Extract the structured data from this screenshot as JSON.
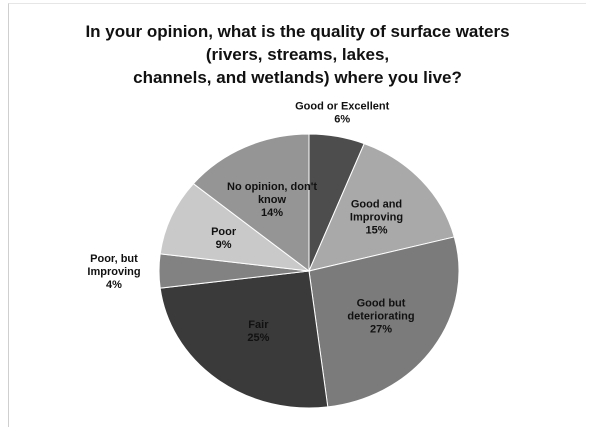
{
  "title_lines": [
    "In your opinion, what is the quality of surface waters",
    "(rivers, streams, lakes,",
    "channels, and wetlands) where you live?"
  ],
  "chart_data": {
    "type": "pie",
    "title": "In your opinion, what is the quality of surface waters (rivers, streams, lakes, channels, and wetlands) where you live?",
    "unit": "%",
    "start_angle_deg": 0,
    "direction": "clockwise",
    "slices": [
      {
        "label": "Good or Excellent",
        "label_lines": [
          "Good or Excellent"
        ],
        "value": 6,
        "value_label": "6%",
        "color": "#4d4d4d"
      },
      {
        "label": "Good and Improving",
        "label_lines": [
          "Good and",
          "Improving"
        ],
        "value": 15,
        "value_label": "15%",
        "color": "#a9a9a9"
      },
      {
        "label": "Good but deteriorating",
        "label_lines": [
          "Good but",
          "deteriorating"
        ],
        "value": 27,
        "value_label": "27%",
        "color": "#7b7b7b"
      },
      {
        "label": "Fair",
        "label_lines": [
          "Fair"
        ],
        "value": 25,
        "value_label": "25%",
        "color": "#3a3a3a"
      },
      {
        "label": "Poor, but Improving",
        "label_lines": [
          "Poor, but",
          "Improving"
        ],
        "value": 4,
        "value_label": "4%",
        "color": "#828282"
      },
      {
        "label": "Poor",
        "label_lines": [
          "Poor"
        ],
        "value": 9,
        "value_label": "9%",
        "color": "#c9c9c9"
      },
      {
        "label": "No opinion, don't know",
        "label_lines": [
          "No opinion, don't",
          "know"
        ],
        "value": 14,
        "value_label": "14%",
        "color": "#959595"
      }
    ]
  }
}
